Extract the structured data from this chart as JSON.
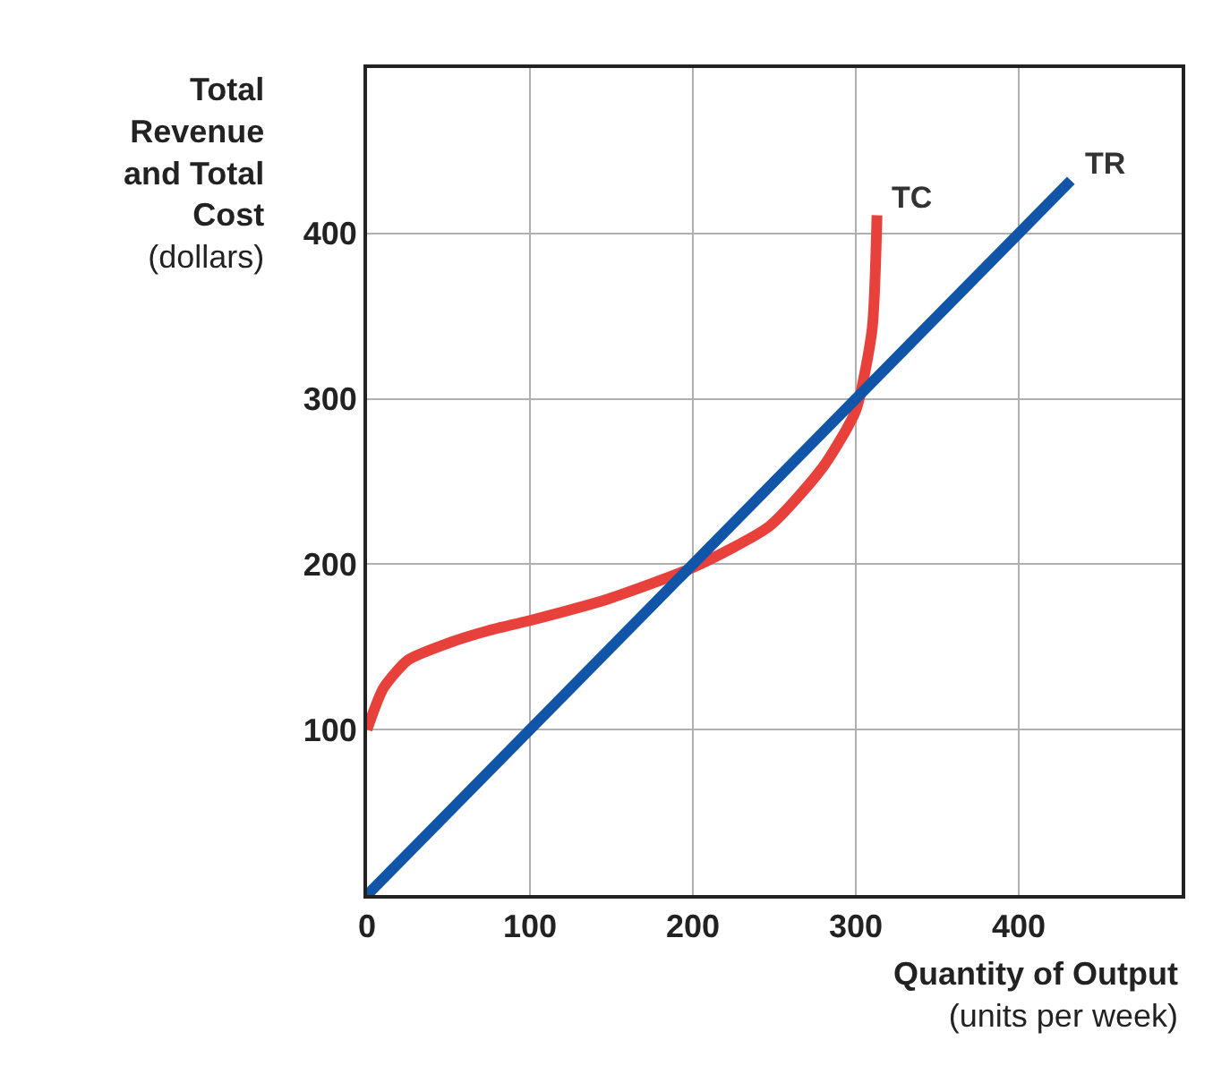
{
  "chart_data": {
    "type": "line",
    "xlabel": "Quantity of Output\n(units per week)",
    "ylabel": "Total\nRevenue\nand Total\nCost\n(dollars)",
    "xlim": [
      0,
      500
    ],
    "ylim": [
      0,
      500
    ],
    "xticks": [
      0,
      100,
      200,
      300,
      400
    ],
    "yticks": [
      100,
      200,
      300,
      400
    ],
    "grid": true,
    "legend": false,
    "marker": "none",
    "line_style": "solid",
    "series": [
      {
        "name": "TC",
        "color": "#e8413c",
        "x": [
          0,
          10,
          25,
          49,
          75,
          100,
          148,
          200,
          247,
          280,
          300,
          310,
          313
        ],
        "values": [
          100,
          125,
          142,
          152,
          160,
          166,
          179,
          198,
          223,
          259,
          293,
          342,
          411
        ]
      },
      {
        "name": "TR",
        "color": "#1155a8",
        "x": [
          0,
          432
        ],
        "values": [
          0,
          432
        ]
      }
    ]
  }
}
